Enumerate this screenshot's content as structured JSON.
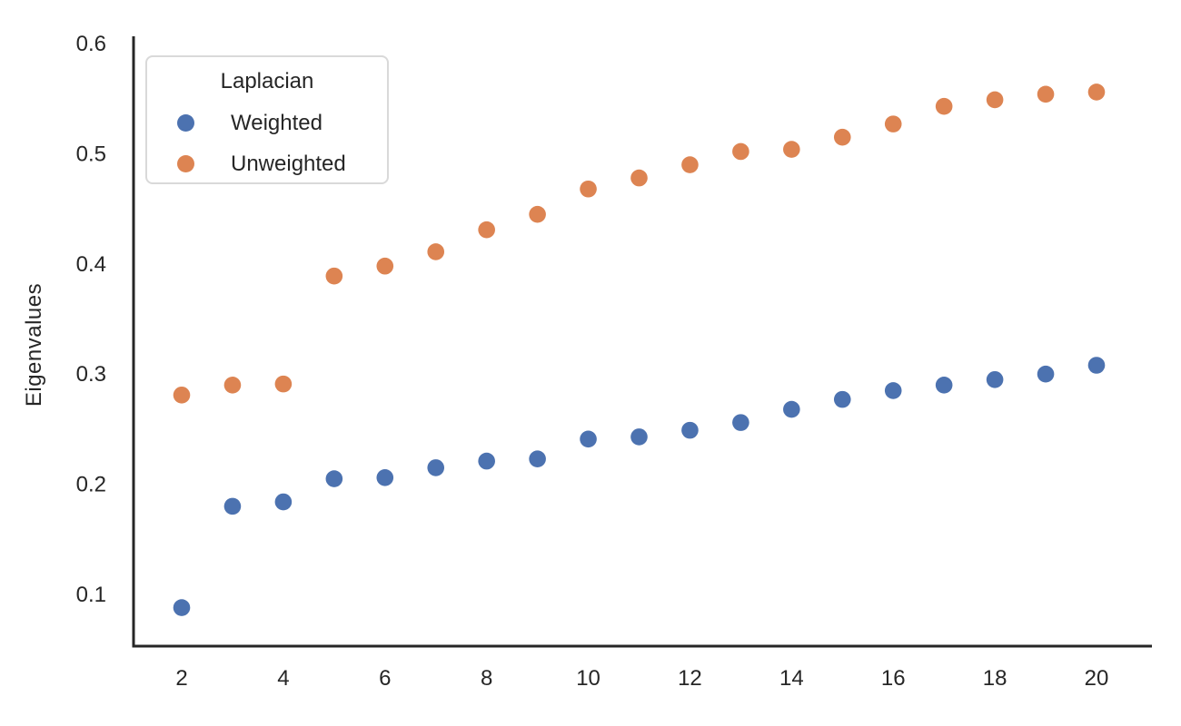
{
  "figure": {
    "background": "#ffffff"
  },
  "colors": {
    "spine": "#262626",
    "tick_label": "#262626",
    "legend_border": "#d9d9d9",
    "weighted_blue": "#4c72b0",
    "unweighted_orange": "#dd8452"
  },
  "chart_data": {
    "type": "scatter",
    "title": "",
    "xlabel": "",
    "ylabel": "Eigenvalues",
    "grid": false,
    "legend": {
      "title": "Laplacian",
      "position": "upper left"
    },
    "x": [
      2,
      3,
      4,
      5,
      6,
      7,
      8,
      9,
      10,
      11,
      12,
      13,
      14,
      15,
      16,
      17,
      18,
      19,
      20
    ],
    "series": [
      {
        "name": "Weighted",
        "color": "#4c72b0",
        "values": [
          0.088,
          0.18,
          0.184,
          0.205,
          0.206,
          0.215,
          0.221,
          0.223,
          0.241,
          0.243,
          0.249,
          0.256,
          0.268,
          0.277,
          0.285,
          0.29,
          0.295,
          0.3,
          0.308
        ]
      },
      {
        "name": "Unweighted",
        "color": "#dd8452",
        "values": [
          0.281,
          0.29,
          0.291,
          0.389,
          0.398,
          0.411,
          0.431,
          0.445,
          0.468,
          0.478,
          0.49,
          0.502,
          0.504,
          0.515,
          0.527,
          0.543,
          0.549,
          0.554,
          0.556
        ]
      }
    ],
    "x_ticks": [
      2,
      4,
      6,
      8,
      10,
      12,
      14,
      16,
      18,
      20
    ],
    "y_ticks": [
      0.1,
      0.2,
      0.3,
      0.4,
      0.5,
      0.6
    ],
    "xlim": [
      1.05,
      21.1
    ],
    "ylim": [
      0.055,
      0.605
    ]
  }
}
